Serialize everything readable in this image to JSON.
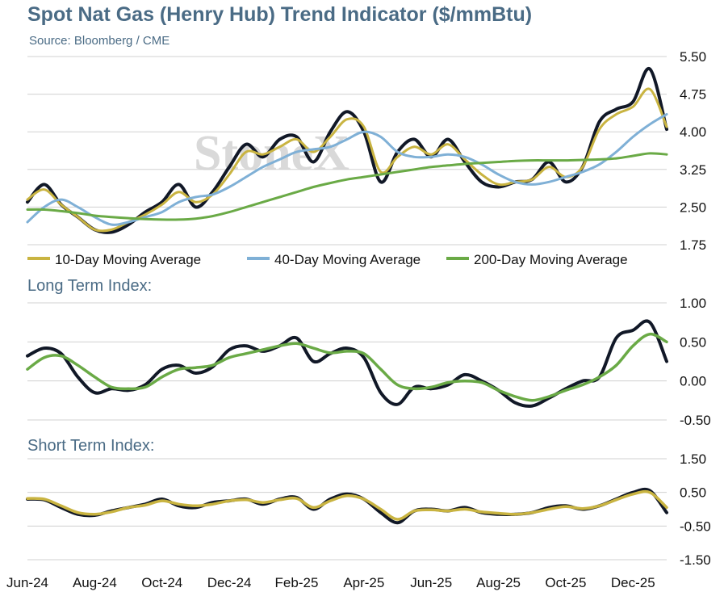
{
  "title": "Spot Nat Gas (Henry Hub) Trend Indicator ($/mmBtu)",
  "subtitle": "Source: Bloomberg / CME",
  "watermark": "StoneX",
  "panel_titles": {
    "long": "Long Term Index:",
    "short": "Short Term Index:"
  },
  "colors": {
    "price": "#111827",
    "ma10": "#c9b441",
    "ma40": "#7fb0d6",
    "ma200": "#6aaa46",
    "index_line": "#111827",
    "index_signal": "#6aaa46",
    "short_signal": "#c9b441",
    "grid": "#d0d0d0",
    "title": "#4a6b85"
  },
  "chart_data": [
    {
      "type": "line",
      "x_ticks": [
        "Jun-24",
        "Aug-24",
        "Oct-24",
        "Dec-24",
        "Feb-25",
        "Apr-25",
        "Jun-25",
        "Aug-25",
        "Oct-25",
        "Dec-25"
      ],
      "y_ticks": [
        "5.50",
        "4.75",
        "4.00",
        "3.25",
        "2.50",
        "1.75"
      ],
      "ylim": [
        1.75,
        5.5
      ],
      "grid": true,
      "legend": {
        "placement": "bottom",
        "items": [
          "10-Day Moving Average",
          "40-Day Moving Average",
          "200-Day Moving Average"
        ]
      },
      "x_months": [
        0,
        0.5,
        1,
        1.5,
        2,
        2.5,
        3,
        3.5,
        4,
        4.5,
        5,
        5.5,
        6,
        6.5,
        7,
        7.5,
        8,
        8.5,
        9,
        9.5,
        10,
        10.5,
        11,
        11.5,
        12,
        12.5,
        13,
        13.5,
        14,
        14.5,
        15,
        15.5,
        16,
        16.5,
        17,
        17.5,
        18,
        18.5,
        19
      ],
      "series": [
        {
          "name": "",
          "values": [
            2.6,
            2.95,
            2.55,
            2.3,
            2.05,
            2.0,
            2.15,
            2.4,
            2.6,
            2.95,
            2.5,
            2.8,
            3.3,
            3.75,
            3.5,
            3.85,
            3.9,
            3.4,
            4.0,
            4.4,
            4.0,
            3.0,
            3.6,
            3.85,
            3.5,
            3.85,
            3.4,
            3.0,
            2.9,
            3.0,
            3.05,
            3.4,
            3.0,
            3.3,
            4.2,
            4.45,
            4.6,
            5.25,
            4.05
          ]
        },
        {
          "name": "10-Day Moving Average",
          "values": [
            2.65,
            2.85,
            2.55,
            2.3,
            2.05,
            2.05,
            2.2,
            2.35,
            2.55,
            2.8,
            2.6,
            2.75,
            3.15,
            3.6,
            3.55,
            3.7,
            3.85,
            3.6,
            3.9,
            4.25,
            4.1,
            3.2,
            3.5,
            3.7,
            3.55,
            3.75,
            3.45,
            3.15,
            2.95,
            3.0,
            3.05,
            3.3,
            3.1,
            3.3,
            4.05,
            4.35,
            4.5,
            4.85,
            4.1
          ]
        },
        {
          "name": "40-Day Moving Average",
          "values": [
            2.2,
            2.5,
            2.65,
            2.5,
            2.3,
            2.15,
            2.2,
            2.3,
            2.4,
            2.6,
            2.7,
            2.75,
            2.9,
            3.1,
            3.3,
            3.45,
            3.6,
            3.65,
            3.7,
            3.85,
            4.0,
            3.9,
            3.6,
            3.5,
            3.5,
            3.55,
            3.5,
            3.35,
            3.15,
            3.0,
            2.95,
            3.0,
            3.1,
            3.2,
            3.35,
            3.6,
            3.9,
            4.15,
            4.35
          ]
        },
        {
          "name": "200-Day Moving Average",
          "values": [
            2.45,
            2.45,
            2.42,
            2.38,
            2.33,
            2.3,
            2.28,
            2.26,
            2.25,
            2.25,
            2.27,
            2.32,
            2.4,
            2.5,
            2.6,
            2.7,
            2.8,
            2.9,
            2.98,
            3.05,
            3.1,
            3.15,
            3.2,
            3.25,
            3.3,
            3.33,
            3.36,
            3.38,
            3.4,
            3.42,
            3.43,
            3.43,
            3.43,
            3.44,
            3.45,
            3.47,
            3.52,
            3.57,
            3.55
          ]
        }
      ]
    },
    {
      "type": "line",
      "title": "Long Term Index:",
      "y_ticks": [
        "1.00",
        "0.50",
        "0.00",
        "-0.50"
      ],
      "ylim": [
        -0.5,
        1.0
      ],
      "grid": true,
      "x_months": [
        0,
        0.5,
        1,
        1.5,
        2,
        2.5,
        3,
        3.5,
        4,
        4.5,
        5,
        5.5,
        6,
        6.5,
        7,
        7.5,
        8,
        8.5,
        9,
        9.5,
        10,
        10.5,
        11,
        11.5,
        12,
        12.5,
        13,
        13.5,
        14,
        14.5,
        15,
        15.5,
        16,
        16.5,
        17,
        17.5,
        18,
        18.5,
        19
      ],
      "series": [
        {
          "name": "",
          "values": [
            0.32,
            0.42,
            0.35,
            0.05,
            -0.15,
            -0.1,
            -0.12,
            -0.05,
            0.15,
            0.2,
            0.1,
            0.18,
            0.4,
            0.45,
            0.38,
            0.45,
            0.55,
            0.25,
            0.35,
            0.42,
            0.3,
            -0.15,
            -0.3,
            -0.08,
            -0.1,
            -0.05,
            0.08,
            0.0,
            -0.12,
            -0.28,
            -0.32,
            -0.22,
            -0.1,
            0.0,
            0.05,
            0.55,
            0.65,
            0.75,
            0.25
          ]
        },
        {
          "name": "",
          "values": [
            0.15,
            0.3,
            0.32,
            0.2,
            0.05,
            -0.08,
            -0.1,
            -0.08,
            0.05,
            0.15,
            0.17,
            0.2,
            0.3,
            0.35,
            0.4,
            0.45,
            0.48,
            0.42,
            0.36,
            0.38,
            0.35,
            0.15,
            -0.05,
            -0.1,
            -0.08,
            -0.02,
            0.0,
            -0.02,
            -0.12,
            -0.2,
            -0.25,
            -0.2,
            -0.12,
            -0.05,
            0.05,
            0.2,
            0.45,
            0.6,
            0.5
          ]
        }
      ]
    },
    {
      "type": "line",
      "title": "Short Term Index:",
      "y_ticks": [
        "1.50",
        "0.50",
        "-0.50",
        "-1.50"
      ],
      "ylim": [
        -1.5,
        1.5
      ],
      "grid": true,
      "x_months": [
        0,
        0.5,
        1,
        1.5,
        2,
        2.5,
        3,
        3.5,
        4,
        4.5,
        5,
        5.5,
        6,
        6.5,
        7,
        7.5,
        8,
        8.5,
        9,
        9.5,
        10,
        10.5,
        11,
        11.5,
        12,
        12.5,
        13,
        13.5,
        14,
        14.5,
        15,
        15.5,
        16,
        16.5,
        17,
        17.5,
        18,
        18.5,
        19
      ],
      "series": [
        {
          "name": "",
          "values": [
            0.3,
            0.28,
            0.05,
            -0.15,
            -0.18,
            -0.05,
            0.05,
            0.15,
            0.3,
            0.1,
            0.05,
            0.2,
            0.25,
            0.3,
            0.15,
            0.3,
            0.35,
            0.0,
            0.3,
            0.45,
            0.3,
            -0.1,
            -0.4,
            -0.05,
            0.0,
            -0.05,
            0.05,
            -0.1,
            -0.15,
            -0.15,
            -0.1,
            0.05,
            0.1,
            0.0,
            0.1,
            0.3,
            0.5,
            0.55,
            -0.1
          ]
        },
        {
          "name": "",
          "values": [
            0.32,
            0.3,
            0.1,
            -0.1,
            -0.15,
            -0.08,
            0.05,
            0.12,
            0.25,
            0.15,
            0.1,
            0.15,
            0.25,
            0.28,
            0.2,
            0.28,
            0.32,
            0.05,
            0.25,
            0.4,
            0.3,
            0.0,
            -0.3,
            -0.05,
            -0.02,
            -0.05,
            0.0,
            -0.08,
            -0.12,
            -0.15,
            -0.1,
            0.0,
            0.08,
            0.02,
            0.1,
            0.28,
            0.45,
            0.5,
            0.05
          ]
        }
      ]
    }
  ]
}
